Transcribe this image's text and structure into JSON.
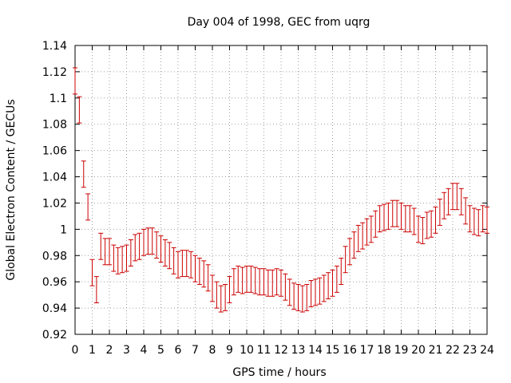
{
  "chart_data": {
    "type": "scatter",
    "title": "Day 004 of 1998, GEC from uqrg",
    "xlabel": "GPS time / hours",
    "ylabel": "Global Electron Content / GECUs",
    "xlim": [
      0,
      24
    ],
    "ylim": [
      0.92,
      1.14
    ],
    "xticks": [
      0,
      1,
      2,
      3,
      4,
      5,
      6,
      7,
      8,
      9,
      10,
      11,
      12,
      13,
      14,
      15,
      16,
      17,
      18,
      19,
      20,
      21,
      22,
      23,
      24
    ],
    "xtick_labels": [
      "0",
      "1",
      "2",
      "3",
      "4",
      "5",
      "6",
      "7",
      "8",
      "9",
      "10",
      "11",
      "12",
      "13",
      "14",
      "15",
      "16",
      "17",
      "18",
      "19",
      "20",
      "21",
      "22",
      "23",
      "24"
    ],
    "yticks": [
      0.92,
      0.94,
      0.96,
      0.98,
      1.0,
      1.02,
      1.04,
      1.06,
      1.08,
      1.1,
      1.12,
      1.14
    ],
    "ytick_labels": [
      "0.92",
      "0.94",
      "0.96",
      "0.98",
      "1",
      "1.02",
      "1.04",
      "1.06",
      "1.08",
      "1.1",
      "1.12",
      "1.14"
    ],
    "grid": true,
    "error_bar_halfwidth": 0.01,
    "series": [
      {
        "color": "#cc0000",
        "x": [
          0.0,
          0.25,
          0.5,
          0.75,
          1.0,
          1.25,
          1.5,
          1.75,
          2.0,
          2.25,
          2.5,
          2.75,
          3.0,
          3.25,
          3.5,
          3.75,
          4.0,
          4.25,
          4.5,
          4.75,
          5.0,
          5.25,
          5.5,
          5.75,
          6.0,
          6.25,
          6.5,
          6.75,
          7.0,
          7.25,
          7.5,
          7.75,
          8.0,
          8.25,
          8.5,
          8.75,
          9.0,
          9.25,
          9.5,
          9.75,
          10.0,
          10.25,
          10.5,
          10.75,
          11.0,
          11.25,
          11.5,
          11.75,
          12.0,
          12.25,
          12.5,
          12.75,
          13.0,
          13.25,
          13.5,
          13.75,
          14.0,
          14.25,
          14.5,
          14.75,
          15.0,
          15.25,
          15.5,
          15.75,
          16.0,
          16.25,
          16.5,
          16.75,
          17.0,
          17.25,
          17.5,
          17.75,
          18.0,
          18.25,
          18.5,
          18.75,
          19.0,
          19.25,
          19.5,
          19.75,
          20.0,
          20.25,
          20.5,
          20.75,
          21.0,
          21.25,
          21.5,
          21.75,
          22.0,
          22.25,
          22.5,
          22.75,
          23.0,
          23.25,
          23.5,
          23.75,
          24.0
        ],
        "y": [
          1.113,
          1.091,
          1.042,
          1.017,
          0.967,
          0.954,
          0.987,
          0.983,
          0.983,
          0.978,
          0.976,
          0.977,
          0.978,
          0.982,
          0.986,
          0.987,
          0.99,
          0.991,
          0.991,
          0.988,
          0.985,
          0.982,
          0.98,
          0.976,
          0.973,
          0.974,
          0.974,
          0.973,
          0.97,
          0.968,
          0.966,
          0.963,
          0.955,
          0.95,
          0.947,
          0.948,
          0.954,
          0.96,
          0.962,
          0.961,
          0.962,
          0.962,
          0.961,
          0.96,
          0.96,
          0.959,
          0.959,
          0.96,
          0.959,
          0.956,
          0.952,
          0.949,
          0.948,
          0.947,
          0.948,
          0.951,
          0.952,
          0.953,
          0.955,
          0.957,
          0.959,
          0.962,
          0.968,
          0.977,
          0.983,
          0.988,
          0.993,
          0.995,
          0.998,
          1.0,
          1.004,
          1.008,
          1.009,
          1.01,
          1.012,
          1.012,
          1.01,
          1.008,
          1.008,
          1.006,
          1.0,
          0.999,
          1.003,
          1.004,
          1.007,
          1.013,
          1.018,
          1.021,
          1.025,
          1.025,
          1.021,
          1.014,
          1.008,
          1.006,
          1.005,
          1.008,
          1.007
        ]
      }
    ]
  }
}
